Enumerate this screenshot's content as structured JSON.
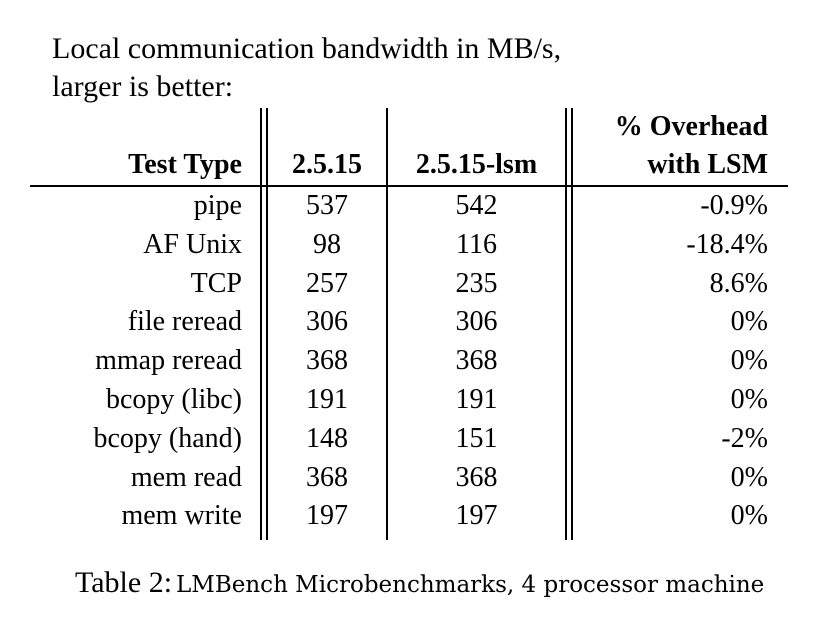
{
  "intro": {
    "line1": "Local communication bandwidth in MB/s,",
    "line2": "larger is better:"
  },
  "table": {
    "headers": {
      "test_type": "Test Type",
      "v1": "2.5.15",
      "v2": "2.5.15-lsm",
      "overhead_line1": "% Overhead",
      "overhead_line2": "with LSM"
    },
    "rows": [
      {
        "test": "pipe",
        "v1": "537",
        "v2": "542",
        "overhead": "-0.9%"
      },
      {
        "test": "AF Unix",
        "v1": "98",
        "v2": "116",
        "overhead": "-18.4%"
      },
      {
        "test": "TCP",
        "v1": "257",
        "v2": "235",
        "overhead": "8.6%"
      },
      {
        "test": "file reread",
        "v1": "306",
        "v2": "306",
        "overhead": "0%"
      },
      {
        "test": "mmap reread",
        "v1": "368",
        "v2": "368",
        "overhead": "0%"
      },
      {
        "test": "bcopy (libc)",
        "v1": "191",
        "v2": "191",
        "overhead": "0%"
      },
      {
        "test": "bcopy (hand)",
        "v1": "148",
        "v2": "151",
        "overhead": "-2%"
      },
      {
        "test": "mem read",
        "v1": "368",
        "v2": "368",
        "overhead": "0%"
      },
      {
        "test": "mem write",
        "v1": "197",
        "v2": "197",
        "overhead": "0%"
      }
    ]
  },
  "caption": {
    "label": "Table 2:",
    "text": "LMBench Microbenchmarks, 4 processor machine"
  }
}
